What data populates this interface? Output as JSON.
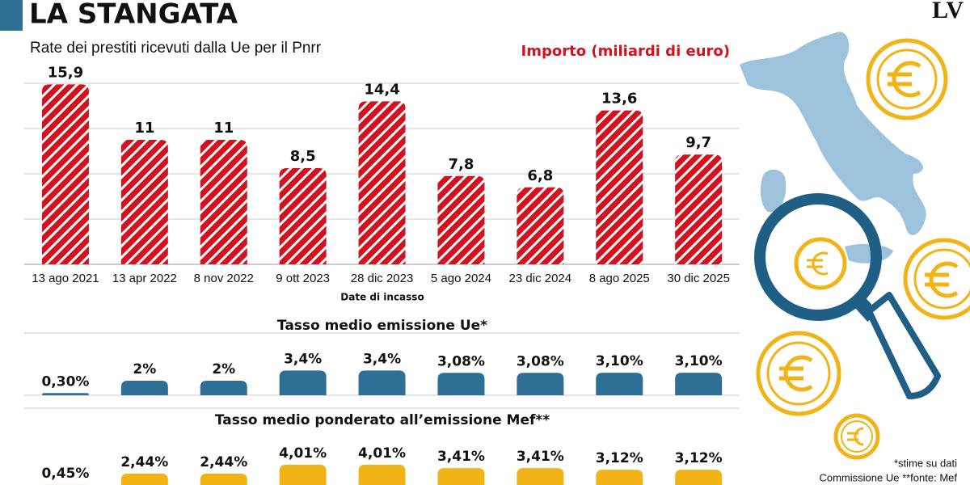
{
  "header": {
    "title": "LA STANGATA",
    "logo": "LV"
  },
  "chart_data": [
    {
      "type": "bar",
      "subtitle": "Rate dei prestiti ricevuti dalla Ue per il Pnrr",
      "value_axis_label": "Importo (miliardi di euro)",
      "x_label": "Date di incasso",
      "categories": [
        "13 ago 2021",
        "13 apr 2022",
        "8 nov 2022",
        "9 ott 2023",
        "28 dic 2023",
        "5 ago 2024",
        "23 dic 2024",
        "8 ago 2025",
        "30 dic 2025"
      ],
      "values": [
        15.9,
        11,
        11,
        8.5,
        14.4,
        7.8,
        6.8,
        13.6,
        9.7
      ],
      "value_labels": [
        "15,9",
        "11",
        "11",
        "8,5",
        "14,4",
        "7,8",
        "6,8",
        "13,6",
        "9,7"
      ],
      "color": "#d3121f",
      "pattern": "hatch",
      "ylim": [
        0,
        16
      ],
      "gridlines": [
        0,
        4,
        8,
        12,
        16
      ]
    },
    {
      "type": "bar",
      "title": "Tasso medio emissione Ue*",
      "values": [
        0.3,
        2,
        2,
        3.4,
        3.4,
        3.08,
        3.08,
        3.1,
        3.1
      ],
      "value_labels": [
        "0,30%",
        "2%",
        "2%",
        "3,4%",
        "3,4%",
        "3,08%",
        "3,08%",
        "3,10%",
        "3,10%"
      ],
      "color": "#2e6f96",
      "ylim": [
        0,
        6
      ]
    },
    {
      "type": "bar",
      "title": "Tasso medio ponderato all’emissione Mef**",
      "values": [
        0.45,
        2.44,
        2.44,
        4.01,
        4.01,
        3.41,
        3.41,
        3.12,
        3.12
      ],
      "value_labels": [
        "0,45%",
        "2,44%",
        "2,44%",
        "4,01%",
        "4,01%",
        "3,41%",
        "3,41%",
        "3,12%",
        "3,12%"
      ],
      "color": "#f2b316",
      "ylim": [
        0,
        6
      ]
    }
  ],
  "footnotes": [
    "*stime su dati",
    "Commissione Ue **fonte: Mef"
  ]
}
